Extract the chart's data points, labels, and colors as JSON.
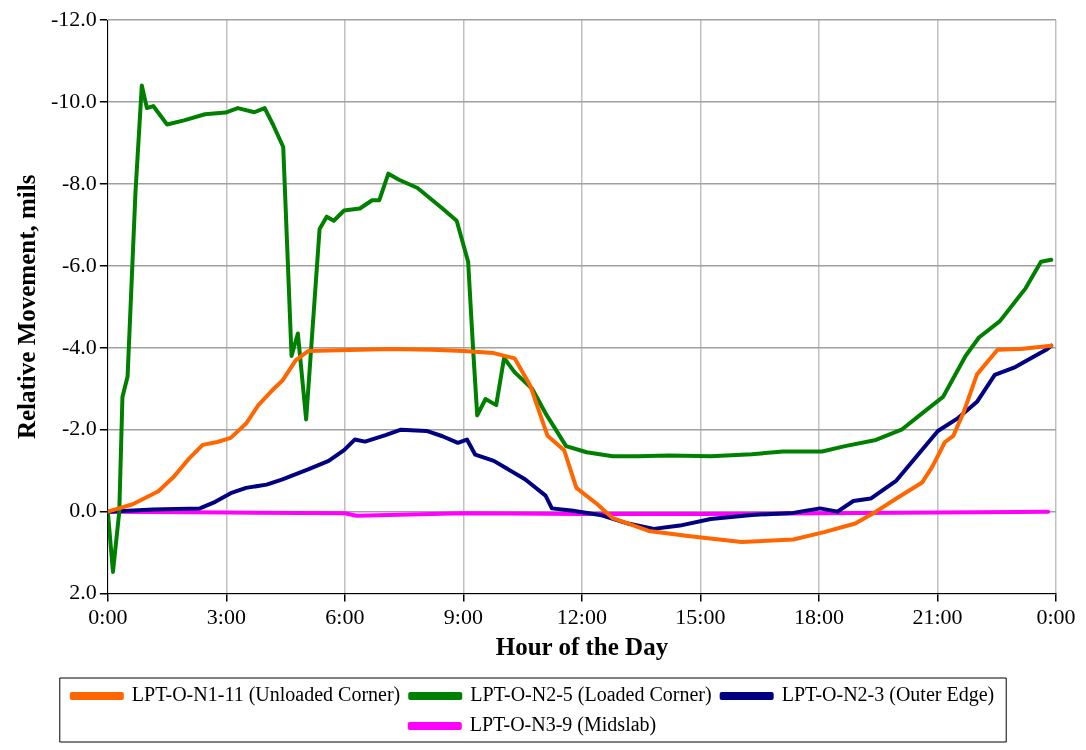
{
  "chart_data": {
    "type": "line",
    "xlabel": "Hour of the Day",
    "ylabel": "Relative Movement, mils",
    "xlim": [
      0,
      24
    ],
    "xticks": [
      {
        "value": 0,
        "label": "0:00"
      },
      {
        "value": 3,
        "label": "3:00"
      },
      {
        "value": 6,
        "label": "6:00"
      },
      {
        "value": 9,
        "label": "9:00"
      },
      {
        "value": 12,
        "label": "12:00"
      },
      {
        "value": 15,
        "label": "15:00"
      },
      {
        "value": 18,
        "label": "18:00"
      },
      {
        "value": 21,
        "label": "21:00"
      },
      {
        "value": 24,
        "label": "0:00"
      }
    ],
    "ylim": [
      2,
      -12
    ],
    "yticks": [
      {
        "value": 2,
        "label": "2.0"
      },
      {
        "value": 0,
        "label": "0.0"
      },
      {
        "value": -2,
        "label": "-2.0"
      },
      {
        "value": -4,
        "label": "-4.0"
      },
      {
        "value": -6,
        "label": "-6.0"
      },
      {
        "value": -8,
        "label": "-8.0"
      },
      {
        "value": -10,
        "label": "-10.0"
      },
      {
        "value": -12,
        "label": "-12.0"
      }
    ],
    "grid": true,
    "legend": "bottom",
    "marker": "none",
    "line_style": "solid",
    "series": [
      {
        "name": "LPT-O-N1-11 (Unloaded Corner)",
        "color": "#ff6600",
        "x": [
          0,
          0.63,
          1.28,
          1.67,
          2.06,
          2.4,
          2.77,
          3.11,
          3.5,
          3.81,
          4.15,
          4.42,
          4.76,
          5.07,
          6.38,
          7.16,
          8.2,
          9.0,
          9.77,
          10.3,
          10.69,
          11.13,
          11.55,
          11.86,
          12.39,
          12.78,
          13.69,
          14.74,
          16.04,
          17.35,
          18.13,
          18.92,
          19.44,
          19.96,
          20.61,
          20.87,
          21.19,
          21.4,
          21.66,
          22.0,
          22.52,
          23.1,
          23.88
        ],
        "values": [
          0,
          -0.18,
          -0.5,
          -0.85,
          -1.3,
          -1.63,
          -1.7,
          -1.8,
          -2.15,
          -2.6,
          -2.95,
          -3.2,
          -3.7,
          -3.92,
          -3.95,
          -3.97,
          -3.95,
          -3.92,
          -3.87,
          -3.74,
          -3.08,
          -1.85,
          -1.5,
          -0.58,
          -0.18,
          0.16,
          0.47,
          0.6,
          0.74,
          0.68,
          0.5,
          0.29,
          0,
          -0.32,
          -0.71,
          -1.1,
          -1.7,
          -1.85,
          -2.42,
          -3.35,
          -3.95,
          -3.97,
          -4.05
        ]
      },
      {
        "name": "LPT-O-N2-5 (Loaded Corner)",
        "color": "#008000",
        "x": [
          0,
          0.13,
          0.29,
          0.37,
          0.5,
          0.7,
          0.86,
          0.99,
          1.15,
          1.5,
          1.93,
          2.46,
          2.98,
          3.29,
          3.71,
          3.97,
          4.18,
          4.44,
          4.65,
          4.81,
          5.02,
          5.36,
          5.54,
          5.72,
          5.98,
          6.38,
          6.69,
          6.87,
          7.1,
          7.37,
          7.84,
          8.47,
          8.83,
          9.12,
          9.25,
          9.35,
          9.56,
          9.83,
          10.03,
          10.3,
          10.74,
          11.08,
          11.6,
          12.12,
          12.78,
          13.43,
          14.2,
          15.26,
          16.3,
          17.09,
          18.08,
          18.66,
          19.44,
          20.09,
          20.61,
          21.14,
          21.71,
          22.05,
          22.58,
          23.23,
          23.62,
          23.88
        ],
        "values": [
          0,
          1.47,
          0,
          -2.8,
          -3.3,
          -7.8,
          -10.4,
          -9.85,
          -9.9,
          -9.45,
          -9.55,
          -9.7,
          -9.74,
          -9.85,
          -9.75,
          -9.85,
          -9.45,
          -8.9,
          -3.8,
          -4.35,
          -2.25,
          -6.9,
          -7.2,
          -7.1,
          -7.35,
          -7.4,
          -7.6,
          -7.6,
          -8.25,
          -8.1,
          -7.9,
          -7.4,
          -7.1,
          -6.1,
          -3.9,
          -2.35,
          -2.75,
          -2.6,
          -3.75,
          -3.4,
          -3.0,
          -2.4,
          -1.6,
          -1.45,
          -1.35,
          -1.35,
          -1.37,
          -1.35,
          -1.4,
          -1.47,
          -1.47,
          -1.6,
          -1.75,
          -2.0,
          -2.4,
          -2.8,
          -3.8,
          -4.25,
          -4.65,
          -5.45,
          -6.1,
          -6.15
        ]
      },
      {
        "name": "LPT-O-N2-3 (Outer Edge)",
        "color": "#000080",
        "x": [
          0,
          1.15,
          2.33,
          2.72,
          3.11,
          3.5,
          4.02,
          4.42,
          5.07,
          5.59,
          5.98,
          6.25,
          6.51,
          7.03,
          7.42,
          8.07,
          8.47,
          8.86,
          9.09,
          9.3,
          9.77,
          10.56,
          11.08,
          11.24,
          11.73,
          12.46,
          13.17,
          13.82,
          14.48,
          15.26,
          16.3,
          17.35,
          18.03,
          18.47,
          18.87,
          19.31,
          19.96,
          20.49,
          21.01,
          21.53,
          22.0,
          22.45,
          22.97,
          23.75,
          23.88
        ],
        "values": [
          0,
          -0.05,
          -0.08,
          -0.24,
          -0.45,
          -0.58,
          -0.66,
          -0.79,
          -1.03,
          -1.24,
          -1.5,
          -1.76,
          -1.71,
          -1.87,
          -2.0,
          -1.97,
          -1.84,
          -1.68,
          -1.76,
          -1.39,
          -1.24,
          -0.79,
          -0.39,
          -0.08,
          -0.03,
          0.08,
          0.29,
          0.42,
          0.34,
          0.18,
          0.08,
          0.03,
          -0.08,
          0,
          -0.26,
          -0.32,
          -0.76,
          -1.37,
          -1.97,
          -2.29,
          -2.68,
          -3.34,
          -3.53,
          -3.95,
          -4.05
        ]
      },
      {
        "name": "LPT-O-N3-9 (Midslab)",
        "color": "#ff00ff",
        "x": [
          0,
          3,
          6,
          6.3,
          9,
          12,
          15,
          18,
          21,
          23.8
        ],
        "values": [
          0,
          0.02,
          0.04,
          0.1,
          0.04,
          0.06,
          0.06,
          0.04,
          0.02,
          0
        ]
      }
    ]
  }
}
